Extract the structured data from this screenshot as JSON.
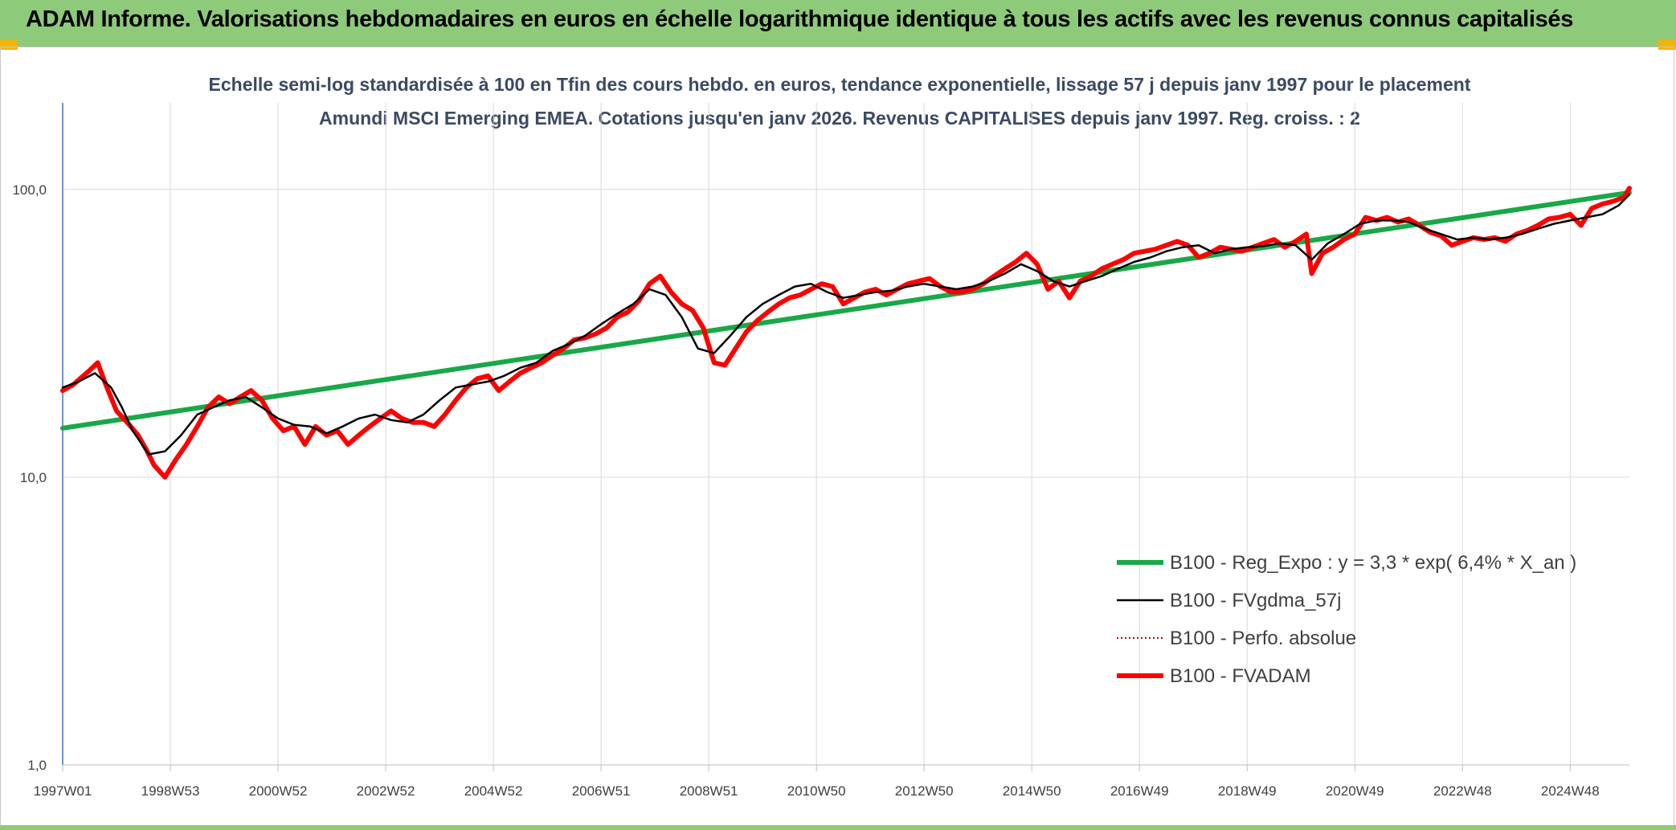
{
  "header": {
    "title": "ADAM Informe. Valorisations hebdomadaires en euros en échelle logarithmique identique à tous les actifs avec les revenus connus capitalisés"
  },
  "colors": {
    "header_bg": "#8dca7a",
    "trend": "#19a849",
    "smooth": "#000000",
    "perf": "#c00000",
    "fvadam": "#ff0000",
    "axis": "#4472c4",
    "grid": "#d9d9d9"
  },
  "chart_data": {
    "type": "line",
    "title": "Echelle semi-log standardisée à 100 en Tfin des cours hebdo. en euros, tendance exponentielle, lissage 57 j depuis janv 1997 pour le placement Amundi MSCI Emerging EMEA. Cotations jusqu'en janv 2026. Revenus CAPITALISES depuis janv 1997. Reg. croiss. : 2",
    "x_scale": "weekly dates (year)",
    "y_scale": "log10",
    "ylim": [
      1,
      200
    ],
    "xlim": [
      1997.0,
      2026.1
    ],
    "y_ticks": [
      {
        "value": 1,
        "label": "1,0"
      },
      {
        "value": 10,
        "label": "10,0"
      },
      {
        "value": 100,
        "label": "100,0"
      }
    ],
    "x_ticks": [
      {
        "value": 1997.0,
        "label": "1997W01"
      },
      {
        "value": 1999.0,
        "label": "1998W53"
      },
      {
        "value": 2001.0,
        "label": "2000W52"
      },
      {
        "value": 2003.0,
        "label": "2002W52"
      },
      {
        "value": 2005.0,
        "label": "2004W52"
      },
      {
        "value": 2007.0,
        "label": "2006W51"
      },
      {
        "value": 2009.0,
        "label": "2008W51"
      },
      {
        "value": 2011.0,
        "label": "2010W50"
      },
      {
        "value": 2013.0,
        "label": "2012W50"
      },
      {
        "value": 2015.0,
        "label": "2014W50"
      },
      {
        "value": 2017.0,
        "label": "2016W49"
      },
      {
        "value": 2019.0,
        "label": "2018W49"
      },
      {
        "value": 2021.0,
        "label": "2020W49"
      },
      {
        "value": 2023.0,
        "label": "2022W48"
      },
      {
        "value": 2025.0,
        "label": "2024W48"
      }
    ],
    "grid": true,
    "legend_position": "bottom-right",
    "series": [
      {
        "name": "B100 - Reg_Expo : y = 3,3 * exp( 6,4% *  X_an )",
        "style": "thick-solid",
        "color": "#19a849",
        "x": [
          1997.0,
          2026.1
        ],
        "y": [
          14.8,
          97.5
        ]
      },
      {
        "name": "B100 - FVgdma_57j",
        "style": "thin-solid",
        "color": "#000000",
        "x": [
          1997.0,
          1997.3,
          1997.6,
          1997.9,
          1998.1,
          1998.3,
          1998.6,
          1998.9,
          1999.2,
          1999.5,
          1999.8,
          2000.1,
          2000.4,
          2000.7,
          2001.0,
          2001.3,
          2001.6,
          2001.9,
          2002.2,
          2002.5,
          2002.8,
          2003.1,
          2003.4,
          2003.7,
          2004.0,
          2004.3,
          2004.6,
          2004.9,
          2005.2,
          2005.5,
          2005.8,
          2006.1,
          2006.4,
          2006.7,
          2007.0,
          2007.3,
          2007.6,
          2007.9,
          2008.2,
          2008.5,
          2008.8,
          2009.1,
          2009.4,
          2009.7,
          2010.0,
          2010.3,
          2010.6,
          2010.9,
          2011.2,
          2011.5,
          2011.8,
          2012.1,
          2012.4,
          2012.7,
          2013.0,
          2013.3,
          2013.6,
          2013.9,
          2014.2,
          2014.5,
          2014.8,
          2015.1,
          2015.4,
          2015.7,
          2016.0,
          2016.3,
          2016.6,
          2016.9,
          2017.2,
          2017.5,
          2017.8,
          2018.1,
          2018.4,
          2018.7,
          2019.0,
          2019.3,
          2019.6,
          2019.9,
          2020.2,
          2020.5,
          2020.8,
          2021.1,
          2021.4,
          2021.7,
          2022.0,
          2022.3,
          2022.6,
          2022.9,
          2023.2,
          2023.5,
          2023.8,
          2024.1,
          2024.4,
          2024.7,
          2025.0,
          2025.3,
          2025.6,
          2025.9,
          2026.1
        ],
        "y": [
          20.5,
          21.5,
          23.0,
          20.5,
          17.5,
          14.5,
          12.0,
          12.3,
          14.0,
          16.5,
          17.5,
          18.5,
          19.0,
          17.5,
          16.0,
          15.2,
          15.0,
          14.2,
          15.0,
          16.0,
          16.5,
          15.8,
          15.5,
          16.5,
          18.5,
          20.5,
          21.0,
          21.5,
          22.5,
          24.0,
          25.0,
          27.5,
          29.0,
          31.0,
          34.0,
          37.0,
          40.0,
          45.0,
          43.0,
          36.0,
          28.0,
          27.0,
          31.0,
          36.0,
          40.0,
          43.0,
          46.0,
          47.0,
          44.0,
          42.0,
          43.0,
          44.0,
          44.5,
          46.0,
          47.0,
          46.0,
          45.0,
          46.0,
          48.0,
          51.0,
          55.0,
          52.0,
          48.0,
          46.0,
          48.0,
          50.0,
          53.0,
          56.0,
          58.0,
          61.0,
          63.0,
          64.0,
          60.0,
          62.0,
          63.0,
          63.5,
          65.0,
          64.0,
          57.0,
          65.0,
          70.0,
          76.0,
          78.0,
          78.0,
          77.0,
          73.0,
          70.0,
          67.0,
          68.0,
          67.0,
          68.0,
          70.0,
          73.0,
          76.0,
          78.0,
          80.0,
          82.0,
          88.0,
          96.0
        ]
      },
      {
        "name": "B100 - Perfo. absolue",
        "style": "dotted",
        "color": "#c00000",
        "x": [],
        "y": []
      },
      {
        "name": "B100 - FVADAM",
        "style": "thick-solid",
        "color": "#ff0000",
        "x": [
          1997.0,
          1997.2,
          1997.5,
          1997.65,
          1997.8,
          1998.0,
          1998.2,
          1998.4,
          1998.55,
          1998.7,
          1998.9,
          1999.1,
          1999.3,
          1999.5,
          1999.7,
          1999.9,
          2000.1,
          2000.3,
          2000.5,
          2000.7,
          2000.9,
          2001.1,
          2001.3,
          2001.5,
          2001.7,
          2001.9,
          2002.1,
          2002.3,
          2002.5,
          2002.7,
          2002.9,
          2003.1,
          2003.3,
          2003.5,
          2003.7,
          2003.9,
          2004.1,
          2004.3,
          2004.5,
          2004.7,
          2004.9,
          2005.1,
          2005.3,
          2005.5,
          2005.7,
          2005.9,
          2006.1,
          2006.3,
          2006.5,
          2006.7,
          2006.9,
          2007.1,
          2007.3,
          2007.5,
          2007.7,
          2007.9,
          2008.1,
          2008.3,
          2008.5,
          2008.7,
          2008.9,
          2009.1,
          2009.3,
          2009.5,
          2009.7,
          2009.9,
          2010.1,
          2010.3,
          2010.5,
          2010.7,
          2010.9,
          2011.1,
          2011.3,
          2011.5,
          2011.7,
          2011.9,
          2012.1,
          2012.3,
          2012.5,
          2012.7,
          2012.9,
          2013.1,
          2013.3,
          2013.5,
          2013.7,
          2013.9,
          2014.1,
          2014.3,
          2014.5,
          2014.7,
          2014.9,
          2015.1,
          2015.3,
          2015.5,
          2015.7,
          2015.9,
          2016.1,
          2016.3,
          2016.5,
          2016.7,
          2016.9,
          2017.1,
          2017.3,
          2017.5,
          2017.7,
          2017.9,
          2018.1,
          2018.3,
          2018.5,
          2018.7,
          2018.9,
          2019.1,
          2019.3,
          2019.5,
          2019.7,
          2019.9,
          2020.1,
          2020.2,
          2020.4,
          2020.6,
          2020.8,
          2021.0,
          2021.2,
          2021.4,
          2021.6,
          2021.8,
          2022.0,
          2022.2,
          2022.4,
          2022.6,
          2022.8,
          2023.0,
          2023.2,
          2023.4,
          2023.6,
          2023.8,
          2024.0,
          2024.2,
          2024.4,
          2024.6,
          2024.8,
          2025.0,
          2025.2,
          2025.4,
          2025.6,
          2025.8,
          2026.0,
          2026.1
        ],
        "y": [
          20.0,
          21.0,
          23.5,
          25.0,
          21.0,
          17.0,
          15.5,
          14.0,
          12.5,
          11.0,
          10.0,
          11.5,
          13.0,
          15.0,
          17.5,
          19.0,
          18.0,
          19.0,
          20.0,
          18.5,
          16.0,
          14.5,
          15.0,
          13.0,
          15.0,
          14.0,
          14.5,
          13.0,
          14.0,
          15.0,
          16.0,
          17.0,
          16.0,
          15.5,
          15.5,
          15.0,
          16.5,
          18.5,
          20.5,
          22.0,
          22.5,
          20.0,
          21.5,
          23.0,
          24.0,
          25.0,
          26.5,
          28.0,
          30.0,
          30.5,
          31.5,
          33.0,
          36.0,
          37.5,
          41.0,
          47.0,
          50.0,
          44.0,
          40.0,
          38.0,
          33.0,
          25.0,
          24.5,
          28.0,
          32.0,
          35.0,
          37.5,
          40.0,
          42.0,
          43.0,
          45.0,
          47.0,
          46.0,
          40.0,
          42.0,
          44.0,
          45.0,
          43.0,
          45.0,
          47.0,
          48.0,
          49.0,
          46.0,
          44.0,
          44.0,
          45.0,
          47.0,
          50.0,
          53.0,
          56.0,
          60.0,
          55.0,
          45.0,
          48.0,
          42.0,
          48.0,
          50.0,
          53.0,
          55.0,
          57.0,
          60.0,
          61.0,
          62.0,
          64.0,
          66.0,
          64.0,
          58.0,
          60.0,
          63.0,
          62.0,
          61.0,
          63.0,
          65.0,
          67.0,
          63.0,
          66.0,
          70.0,
          51.0,
          60.0,
          63.0,
          67.0,
          70.0,
          80.0,
          78.0,
          80.0,
          77.0,
          79.0,
          75.0,
          71.0,
          69.0,
          64.0,
          66.0,
          68.0,
          67.0,
          68.0,
          66.0,
          70.0,
          72.0,
          75.0,
          79.0,
          80.0,
          82.0,
          75.0,
          86.0,
          89.0,
          91.0,
          94.0,
          101.0
        ]
      }
    ]
  }
}
